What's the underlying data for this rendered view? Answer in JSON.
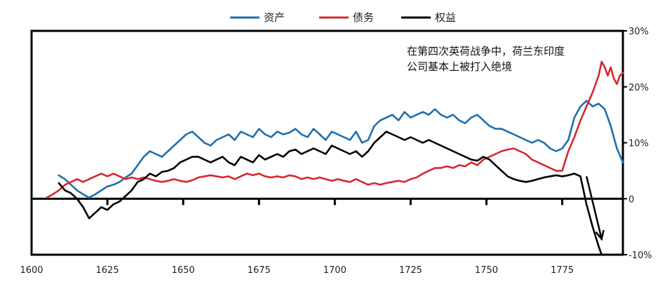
{
  "chart_data": {
    "type": "line",
    "title": "",
    "xlabel": "",
    "ylabel": "",
    "xlim": [
      1600,
      1795
    ],
    "ylim": [
      -10,
      30
    ],
    "x_ticks": [
      "1600",
      "1625",
      "1650",
      "1675",
      "1700",
      "1725",
      "1750",
      "1775"
    ],
    "y_ticks": [
      "30%",
      "20%",
      "10%",
      "0",
      "-10%"
    ],
    "legend_position": "top",
    "grid": false,
    "annotation": {
      "line1": "在第四次英荷战争中，荷兰东印度",
      "line2": "公司基本上被打入绝境",
      "x": 1755,
      "y": 27
    },
    "arrow": {
      "from": [
        1783,
        4.0
      ],
      "to": [
        1788,
        -7.2
      ]
    },
    "series": [
      {
        "name": "资产",
        "color": "#1f6fad",
        "points": [
          [
            1609,
            4.2
          ],
          [
            1611,
            3.5
          ],
          [
            1613,
            2.5
          ],
          [
            1615,
            1.5
          ],
          [
            1617,
            0.8
          ],
          [
            1619,
            0.2
          ],
          [
            1621,
            0.8
          ],
          [
            1623,
            1.5
          ],
          [
            1625,
            2.2
          ],
          [
            1627,
            2.5
          ],
          [
            1629,
            3.0
          ],
          [
            1631,
            3.8
          ],
          [
            1633,
            4.5
          ],
          [
            1635,
            6.0
          ],
          [
            1637,
            7.5
          ],
          [
            1639,
            8.5
          ],
          [
            1641,
            8.0
          ],
          [
            1643,
            7.5
          ],
          [
            1645,
            8.5
          ],
          [
            1647,
            9.5
          ],
          [
            1649,
            10.5
          ],
          [
            1651,
            11.5
          ],
          [
            1653,
            12.0
          ],
          [
            1655,
            11.0
          ],
          [
            1657,
            10.0
          ],
          [
            1659,
            9.5
          ],
          [
            1661,
            10.5
          ],
          [
            1663,
            11.0
          ],
          [
            1665,
            11.5
          ],
          [
            1667,
            10.5
          ],
          [
            1669,
            12.0
          ],
          [
            1671,
            11.5
          ],
          [
            1673,
            11.0
          ],
          [
            1675,
            12.5
          ],
          [
            1677,
            11.5
          ],
          [
            1679,
            11.0
          ],
          [
            1681,
            12.0
          ],
          [
            1683,
            11.5
          ],
          [
            1685,
            11.8
          ],
          [
            1687,
            12.5
          ],
          [
            1689,
            11.5
          ],
          [
            1691,
            11.0
          ],
          [
            1693,
            12.5
          ],
          [
            1695,
            11.5
          ],
          [
            1697,
            10.5
          ],
          [
            1699,
            12.0
          ],
          [
            1701,
            11.5
          ],
          [
            1703,
            11.0
          ],
          [
            1705,
            10.5
          ],
          [
            1707,
            12.0
          ],
          [
            1709,
            10.0
          ],
          [
            1711,
            10.5
          ],
          [
            1713,
            13.0
          ],
          [
            1715,
            14.0
          ],
          [
            1717,
            14.5
          ],
          [
            1719,
            15.0
          ],
          [
            1721,
            14.0
          ],
          [
            1723,
            15.5
          ],
          [
            1725,
            14.5
          ],
          [
            1727,
            15.0
          ],
          [
            1729,
            15.5
          ],
          [
            1731,
            15.0
          ],
          [
            1733,
            16.0
          ],
          [
            1735,
            15.0
          ],
          [
            1737,
            14.5
          ],
          [
            1739,
            15.0
          ],
          [
            1741,
            14.0
          ],
          [
            1743,
            13.5
          ],
          [
            1745,
            14.5
          ],
          [
            1747,
            15.0
          ],
          [
            1749,
            14.0
          ],
          [
            1751,
            13.0
          ],
          [
            1753,
            12.5
          ],
          [
            1755,
            12.5
          ],
          [
            1757,
            12.0
          ],
          [
            1759,
            11.5
          ],
          [
            1761,
            11.0
          ],
          [
            1763,
            10.5
          ],
          [
            1765,
            10.0
          ],
          [
            1767,
            10.5
          ],
          [
            1769,
            10.0
          ],
          [
            1771,
            9.0
          ],
          [
            1773,
            8.5
          ],
          [
            1775,
            9.0
          ],
          [
            1777,
            10.5
          ],
          [
            1779,
            14.5
          ],
          [
            1781,
            16.5
          ],
          [
            1783,
            17.5
          ],
          [
            1785,
            16.5
          ],
          [
            1787,
            17.0
          ],
          [
            1789,
            16.0
          ],
          [
            1791,
            13.0
          ],
          [
            1793,
            9.0
          ],
          [
            1795,
            6.5
          ]
        ]
      },
      {
        "name": "债务",
        "color": "#d7282f",
        "points": [
          [
            1605,
            0.2
          ],
          [
            1607,
            0.8
          ],
          [
            1609,
            1.5
          ],
          [
            1611,
            2.5
          ],
          [
            1613,
            3.0
          ],
          [
            1615,
            3.5
          ],
          [
            1617,
            3.0
          ],
          [
            1619,
            3.5
          ],
          [
            1621,
            4.0
          ],
          [
            1623,
            4.5
          ],
          [
            1625,
            4.0
          ],
          [
            1627,
            4.5
          ],
          [
            1629,
            4.0
          ],
          [
            1631,
            3.5
          ],
          [
            1633,
            3.8
          ],
          [
            1635,
            3.5
          ],
          [
            1637,
            3.8
          ],
          [
            1639,
            3.5
          ],
          [
            1641,
            3.2
          ],
          [
            1643,
            3.0
          ],
          [
            1645,
            3.2
          ],
          [
            1647,
            3.5
          ],
          [
            1649,
            3.2
          ],
          [
            1651,
            3.0
          ],
          [
            1653,
            3.3
          ],
          [
            1655,
            3.8
          ],
          [
            1657,
            4.0
          ],
          [
            1659,
            4.2
          ],
          [
            1661,
            4.0
          ],
          [
            1663,
            3.8
          ],
          [
            1665,
            4.0
          ],
          [
            1667,
            3.5
          ],
          [
            1669,
            4.0
          ],
          [
            1671,
            4.5
          ],
          [
            1673,
            4.2
          ],
          [
            1675,
            4.5
          ],
          [
            1677,
            4.0
          ],
          [
            1679,
            3.8
          ],
          [
            1681,
            4.0
          ],
          [
            1683,
            3.8
          ],
          [
            1685,
            4.2
          ],
          [
            1687,
            4.0
          ],
          [
            1689,
            3.5
          ],
          [
            1691,
            3.8
          ],
          [
            1693,
            3.5
          ],
          [
            1695,
            3.8
          ],
          [
            1697,
            3.5
          ],
          [
            1699,
            3.2
          ],
          [
            1701,
            3.5
          ],
          [
            1703,
            3.2
          ],
          [
            1705,
            3.0
          ],
          [
            1707,
            3.5
          ],
          [
            1709,
            3.0
          ],
          [
            1711,
            2.5
          ],
          [
            1713,
            2.8
          ],
          [
            1715,
            2.5
          ],
          [
            1717,
            2.8
          ],
          [
            1719,
            3.0
          ],
          [
            1721,
            3.2
          ],
          [
            1723,
            3.0
          ],
          [
            1725,
            3.5
          ],
          [
            1727,
            3.8
          ],
          [
            1729,
            4.5
          ],
          [
            1731,
            5.0
          ],
          [
            1733,
            5.5
          ],
          [
            1735,
            5.5
          ],
          [
            1737,
            5.8
          ],
          [
            1739,
            5.5
          ],
          [
            1741,
            6.0
          ],
          [
            1743,
            5.8
          ],
          [
            1745,
            6.5
          ],
          [
            1747,
            6.0
          ],
          [
            1749,
            7.0
          ],
          [
            1751,
            7.5
          ],
          [
            1753,
            8.0
          ],
          [
            1755,
            8.5
          ],
          [
            1757,
            8.8
          ],
          [
            1759,
            9.0
          ],
          [
            1761,
            8.5
          ],
          [
            1763,
            8.0
          ],
          [
            1765,
            7.0
          ],
          [
            1767,
            6.5
          ],
          [
            1769,
            6.0
          ],
          [
            1771,
            5.5
          ],
          [
            1773,
            5.0
          ],
          [
            1775,
            5.0
          ],
          [
            1777,
            8.5
          ],
          [
            1779,
            11.0
          ],
          [
            1781,
            14.0
          ],
          [
            1783,
            16.5
          ],
          [
            1785,
            19.0
          ],
          [
            1787,
            22.0
          ],
          [
            1788,
            24.5
          ],
          [
            1789,
            23.5
          ],
          [
            1790,
            22.0
          ],
          [
            1791,
            23.5
          ],
          [
            1792,
            21.5
          ],
          [
            1793,
            20.5
          ],
          [
            1794,
            22.0
          ],
          [
            1795,
            22.5
          ]
        ]
      },
      {
        "name": "权益",
        "color": "#000000",
        "points": [
          [
            1609,
            2.8
          ],
          [
            1611,
            1.5
          ],
          [
            1613,
            1.0
          ],
          [
            1615,
            0.0
          ],
          [
            1617,
            -1.5
          ],
          [
            1619,
            -3.5
          ],
          [
            1621,
            -2.5
          ],
          [
            1623,
            -1.5
          ],
          [
            1625,
            -2.0
          ],
          [
            1627,
            -1.0
          ],
          [
            1629,
            -0.5
          ],
          [
            1631,
            0.5
          ],
          [
            1633,
            1.5
          ],
          [
            1635,
            3.0
          ],
          [
            1637,
            3.5
          ],
          [
            1639,
            4.5
          ],
          [
            1641,
            4.0
          ],
          [
            1643,
            4.8
          ],
          [
            1645,
            5.0
          ],
          [
            1647,
            5.5
          ],
          [
            1649,
            6.5
          ],
          [
            1651,
            7.0
          ],
          [
            1653,
            7.5
          ],
          [
            1655,
            7.5
          ],
          [
            1657,
            7.0
          ],
          [
            1659,
            6.5
          ],
          [
            1661,
            7.0
          ],
          [
            1663,
            7.5
          ],
          [
            1665,
            6.5
          ],
          [
            1667,
            6.0
          ],
          [
            1669,
            7.5
          ],
          [
            1671,
            7.0
          ],
          [
            1673,
            6.5
          ],
          [
            1675,
            7.8
          ],
          [
            1677,
            7.0
          ],
          [
            1679,
            7.5
          ],
          [
            1681,
            8.0
          ],
          [
            1683,
            7.5
          ],
          [
            1685,
            8.5
          ],
          [
            1687,
            8.8
          ],
          [
            1689,
            8.0
          ],
          [
            1691,
            8.5
          ],
          [
            1693,
            9.0
          ],
          [
            1695,
            8.5
          ],
          [
            1697,
            8.0
          ],
          [
            1699,
            9.5
          ],
          [
            1701,
            9.0
          ],
          [
            1703,
            8.5
          ],
          [
            1705,
            8.0
          ],
          [
            1707,
            8.5
          ],
          [
            1709,
            7.5
          ],
          [
            1711,
            8.5
          ],
          [
            1713,
            10.0
          ],
          [
            1715,
            11.0
          ],
          [
            1717,
            12.0
          ],
          [
            1719,
            11.5
          ],
          [
            1721,
            11.0
          ],
          [
            1723,
            10.5
          ],
          [
            1725,
            11.0
          ],
          [
            1727,
            10.5
          ],
          [
            1729,
            10.0
          ],
          [
            1731,
            10.5
          ],
          [
            1733,
            10.0
          ],
          [
            1735,
            9.5
          ],
          [
            1737,
            9.0
          ],
          [
            1739,
            8.5
          ],
          [
            1741,
            8.0
          ],
          [
            1743,
            7.5
          ],
          [
            1745,
            7.0
          ],
          [
            1747,
            6.8
          ],
          [
            1749,
            7.5
          ],
          [
            1751,
            7.0
          ],
          [
            1753,
            6.0
          ],
          [
            1755,
            5.0
          ],
          [
            1757,
            4.0
          ],
          [
            1759,
            3.5
          ],
          [
            1761,
            3.2
          ],
          [
            1763,
            3.0
          ],
          [
            1765,
            3.2
          ],
          [
            1767,
            3.5
          ],
          [
            1769,
            3.8
          ],
          [
            1771,
            4.0
          ],
          [
            1773,
            4.2
          ],
          [
            1775,
            4.0
          ],
          [
            1777,
            4.2
          ],
          [
            1779,
            4.5
          ],
          [
            1781,
            4.0
          ],
          [
            1783,
            -1.0
          ],
          [
            1785,
            -5.0
          ],
          [
            1787,
            -8.5
          ],
          [
            1788,
            -10.0
          ]
        ]
      }
    ]
  }
}
